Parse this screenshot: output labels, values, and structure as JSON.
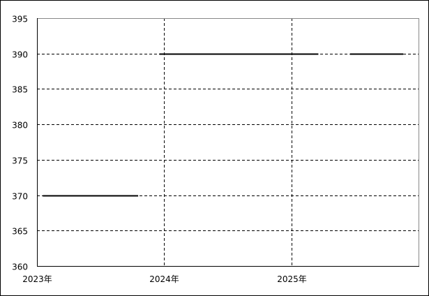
{
  "chart_data": {
    "type": "line",
    "title": "",
    "xlabel": "",
    "ylabel": "",
    "ylim": [
      360,
      395
    ],
    "yticks": [
      360,
      365,
      370,
      375,
      380,
      385,
      390,
      395
    ],
    "xlim": [
      "2023-01",
      "2026-01"
    ],
    "xticks": [
      {
        "date": "2023-01",
        "label": "2023年"
      },
      {
        "date": "2024-01",
        "label": "2024年"
      },
      {
        "date": "2025-01",
        "label": "2025年"
      }
    ],
    "grid": true,
    "line_color": "#000000",
    "series": [
      {
        "x": [
          "2023-01",
          "2023-02",
          "2023-03",
          "2023-04",
          "2023-05",
          "2023-06",
          "2023-07",
          "2023-08",
          "2023-09",
          "2023-10",
          "2023-11",
          "2023-12",
          "2024-01",
          "2024-02",
          "2024-03",
          "2024-04",
          "2024-05",
          "2024-06",
          "2024-07",
          "2024-08",
          "2024-09",
          "2024-10",
          "2024-11",
          "2024-12",
          "2025-01",
          "2025-02",
          "2025-03",
          "2025-04",
          "2025-05",
          "2025-06",
          "2025-07",
          "2025-08",
          "2025-09",
          "2025-10",
          "2025-11",
          "2025-12"
        ],
        "values": [
          370,
          370,
          370,
          370,
          370,
          370,
          370,
          370,
          370,
          370,
          null,
          390,
          390,
          390,
          390,
          390,
          390,
          390,
          390,
          390,
          390,
          390,
          390,
          390,
          390,
          390,
          390,
          null,
          null,
          390,
          390,
          390,
          390,
          390,
          390,
          null
        ]
      }
    ]
  }
}
